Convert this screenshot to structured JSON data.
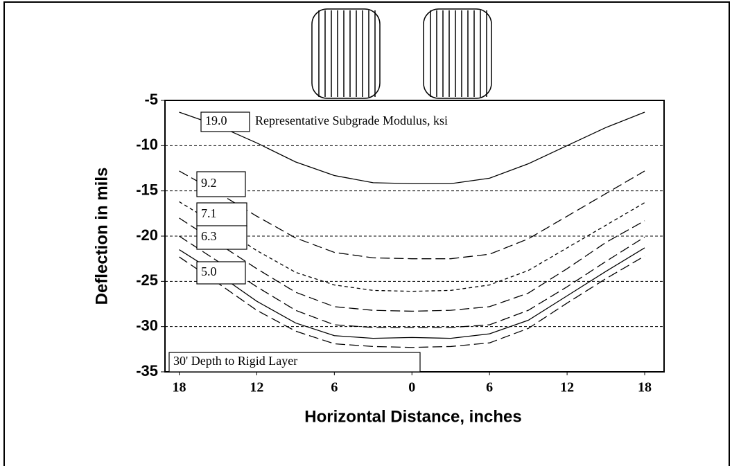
{
  "chart_data": {
    "type": "line",
    "xlabel": "Horizontal Distance, inches",
    "ylabel": "Deflection in mils",
    "x": [
      -18,
      -15,
      -12,
      -9,
      -6,
      -3,
      0,
      3,
      6,
      9,
      12,
      15,
      18
    ],
    "series": [
      {
        "color": "#000000",
        "dash": "solid",
        "values": [
          -6.3,
          -7.8,
          -9.7,
          -11.8,
          -13.3,
          -14.1,
          -14.2,
          -14.2,
          -13.6,
          -12.0,
          -10.0,
          -8.0,
          -6.3
        ]
      },
      {
        "color": "#000000",
        "dash": "long",
        "values": [
          -12.8,
          -15.2,
          -17.8,
          -20.2,
          -21.8,
          -22.4,
          -22.5,
          -22.5,
          -22.0,
          -20.3,
          -17.8,
          -15.3,
          -12.8
        ]
      },
      {
        "color": "#000000",
        "dash": "short",
        "values": [
          -16.2,
          -18.8,
          -21.6,
          -24.0,
          -25.4,
          -26.0,
          -26.1,
          -26.0,
          -25.4,
          -23.8,
          -21.3,
          -18.8,
          -16.3
        ]
      },
      {
        "color": "#000000",
        "dash": "long",
        "values": [
          -18.0,
          -20.8,
          -23.6,
          -26.2,
          -27.8,
          -28.2,
          -28.3,
          -28.2,
          -27.8,
          -26.3,
          -23.6,
          -20.7,
          -18.3
        ]
      },
      {
        "color": "#000000",
        "dash": "long",
        "values": [
          -20.0,
          -22.8,
          -25.6,
          -28.2,
          -29.8,
          -30.1,
          -30.1,
          -30.1,
          -29.8,
          -28.2,
          -25.6,
          -22.8,
          -20.1
        ]
      },
      {
        "color": "#000000",
        "dash": "solid",
        "values": [
          -21.5,
          -24.2,
          -27.2,
          -29.6,
          -31.0,
          -31.3,
          -31.2,
          -31.3,
          -30.8,
          -29.3,
          -26.6,
          -23.9,
          -21.3
        ]
      },
      {
        "color": "#000000",
        "dash": "long",
        "values": [
          -22.3,
          -25.2,
          -28.2,
          -30.5,
          -31.9,
          -32.2,
          -32.3,
          -32.2,
          -31.8,
          -30.2,
          -27.4,
          -24.7,
          -22.2
        ]
      }
    ],
    "annotations": [
      "19.0",
      "Representative Subgrade Modulus, ksi",
      "9.2",
      "7.1",
      "6.3",
      "5.0",
      "30' Depth to Rigid Layer"
    ],
    "xlim": [
      -19.1,
      19.5
    ],
    "ylim": [
      -35,
      -5
    ],
    "xticks": [
      {
        "value": -18,
        "label": "18"
      },
      {
        "value": -12,
        "label": "12"
      },
      {
        "value": -6,
        "label": "6"
      },
      0,
      6,
      12,
      18
    ],
    "yticks": [
      -35,
      -30,
      -25,
      -20,
      -15,
      -10,
      -5
    ],
    "grid": true
  }
}
